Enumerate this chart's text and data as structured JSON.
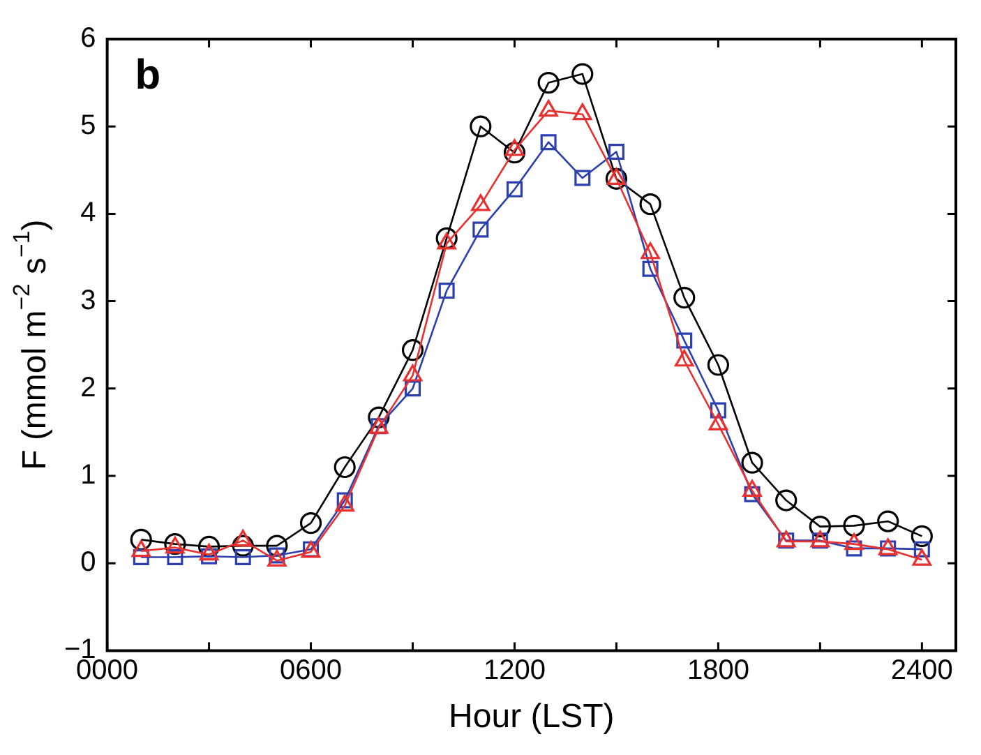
{
  "chart_data": {
    "type": "line",
    "xlabel": "Hour (LST)",
    "ylabel": "F (mmol m$^{−2}$ s$^{−1}$)",
    "annotations": [
      "b"
    ],
    "x": [
      100,
      200,
      300,
      400,
      500,
      600,
      700,
      800,
      900,
      1000,
      1100,
      1200,
      1300,
      1400,
      1500,
      1600,
      1700,
      1800,
      1900,
      2000,
      2100,
      2200,
      2300,
      2400
    ],
    "series": [
      {
        "color": "#000000",
        "marker": "circle",
        "values": [
          0.27,
          0.22,
          0.19,
          0.2,
          0.2,
          0.46,
          1.1,
          1.67,
          2.44,
          3.72,
          5.0,
          4.7,
          5.5,
          5.6,
          4.4,
          4.11,
          3.04,
          2.27,
          1.15,
          0.72,
          0.42,
          0.43,
          0.48,
          0.31
        ]
      },
      {
        "color": "#2b3fae",
        "marker": "square",
        "values": [
          0.07,
          0.07,
          0.08,
          0.07,
          0.09,
          0.16,
          0.72,
          1.57,
          2.0,
          3.12,
          3.82,
          4.28,
          4.82,
          4.41,
          4.71,
          3.37,
          2.55,
          1.75,
          0.79,
          0.26,
          0.26,
          0.17,
          0.17,
          0.16
        ]
      },
      {
        "color": "#e8302e",
        "marker": "triangle",
        "values": [
          0.14,
          0.18,
          0.1,
          0.26,
          0.03,
          0.13,
          0.66,
          1.55,
          2.15,
          3.66,
          4.1,
          4.73,
          5.18,
          5.14,
          4.4,
          3.55,
          2.32,
          1.59,
          0.83,
          0.25,
          0.25,
          0.22,
          0.16,
          0.04
        ]
      }
    ],
    "xlim": [
      0,
      2500
    ],
    "xticks": [
      {
        "value": 0,
        "label": "0000"
      },
      {
        "value": 300,
        "label": null
      },
      {
        "value": 600,
        "label": "0600"
      },
      {
        "value": 900,
        "label": null
      },
      {
        "value": 1200,
        "label": "1200"
      },
      {
        "value": 1500,
        "label": null
      },
      {
        "value": 1800,
        "label": "1800"
      },
      {
        "value": 2100,
        "label": null
      },
      {
        "value": 2400,
        "label": "2400"
      }
    ],
    "ylim": [
      -1,
      6
    ],
    "yticks": [
      {
        "value": -1,
        "label": "−1"
      },
      0,
      1,
      2,
      3,
      4,
      5,
      6
    ],
    "grid": false,
    "legend": false,
    "line_style": "solid"
  }
}
